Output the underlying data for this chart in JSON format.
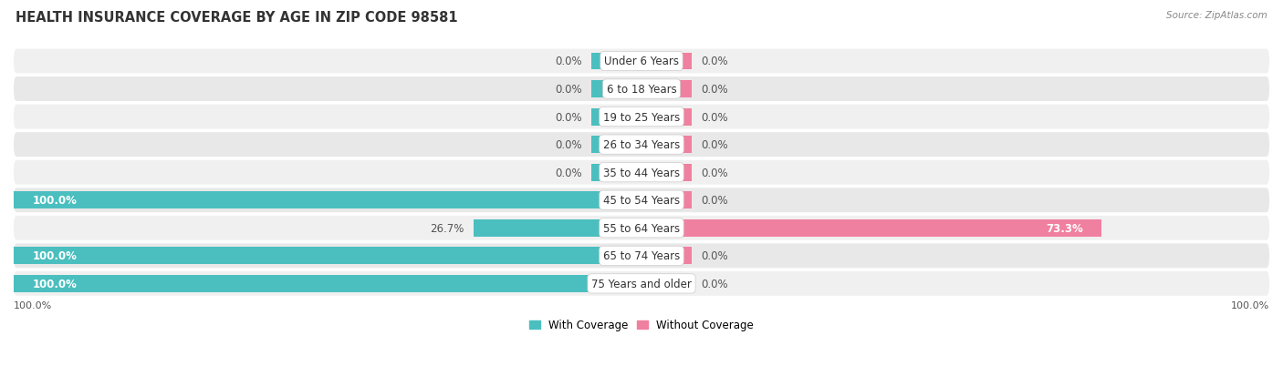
{
  "title": "HEALTH INSURANCE COVERAGE BY AGE IN ZIP CODE 98581",
  "source": "Source: ZipAtlas.com",
  "categories": [
    "Under 6 Years",
    "6 to 18 Years",
    "19 to 25 Years",
    "26 to 34 Years",
    "35 to 44 Years",
    "45 to 54 Years",
    "55 to 64 Years",
    "65 to 74 Years",
    "75 Years and older"
  ],
  "with_coverage": [
    0.0,
    0.0,
    0.0,
    0.0,
    0.0,
    100.0,
    26.7,
    100.0,
    100.0
  ],
  "without_coverage": [
    0.0,
    0.0,
    0.0,
    0.0,
    0.0,
    0.0,
    73.3,
    0.0,
    0.0
  ],
  "color_with": "#4BBFBF",
  "color_without": "#F080A0",
  "bg_row_odd": "#F0F0F0",
  "bg_row_even": "#E8E8E8",
  "title_fontsize": 10.5,
  "label_fontsize": 8.5,
  "cat_fontsize": 8.5,
  "tick_fontsize": 8,
  "bar_height": 0.62,
  "xlim": [
    -100,
    100
  ],
  "min_bar_display": 8
}
